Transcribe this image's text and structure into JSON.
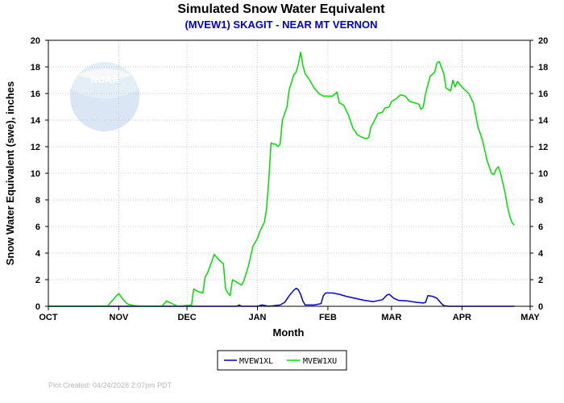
{
  "colors": {
    "xl": "#0000cc",
    "xu": "#00dd00",
    "subtitle": "#0000cc",
    "footer": "#b8b8b8"
  },
  "logo": {
    "text": "NOAA"
  },
  "footer": "Plot Created: 04/24/2026 2:07pm PDT",
  "chart_data": {
    "type": "line",
    "title": "Simulated Snow Water Equivalent",
    "subtitle": "(MVEW1) SKAGIT - NEAR MT VERNON",
    "xlabel": "Month",
    "ylabel": "Snow Water Equivalent (swe),  inches",
    "x_ticks": [
      "OCT",
      "NOV",
      "DEC",
      "JAN",
      "FEB",
      "MAR",
      "APR",
      "MAY"
    ],
    "y_ticks": [
      "0",
      "2",
      "4",
      "6",
      "8",
      "10",
      "12",
      "14",
      "16",
      "18",
      "20"
    ],
    "xlim": [
      "2025-10-01",
      "2026-05-01"
    ],
    "ylim": [
      0,
      20
    ],
    "grid": true,
    "legend_position": "bottom-center",
    "series": [
      {
        "name": "MVEW1XL",
        "color": "#0000cc",
        "points": [
          [
            "2025-10-01",
            0
          ],
          [
            "2025-12-23",
            0
          ],
          [
            "2025-12-24",
            0.1
          ],
          [
            "2025-12-25",
            0
          ],
          [
            "2026-01-01",
            0
          ],
          [
            "2026-01-03",
            0.1
          ],
          [
            "2026-01-06",
            0
          ],
          [
            "2026-01-11",
            0.1
          ],
          [
            "2026-01-13",
            0.3
          ],
          [
            "2026-01-15",
            0.8
          ],
          [
            "2026-01-17",
            1.2
          ],
          [
            "2026-01-18",
            1.35
          ],
          [
            "2026-01-19",
            1.25
          ],
          [
            "2026-01-20",
            0.9
          ],
          [
            "2026-01-21",
            0.4
          ],
          [
            "2026-01-22",
            0.1
          ],
          [
            "2026-01-26",
            0.1
          ],
          [
            "2026-01-29",
            0.2
          ],
          [
            "2026-01-30",
            0.8
          ],
          [
            "2026-01-31",
            1.0
          ],
          [
            "2026-02-03",
            1.0
          ],
          [
            "2026-02-06",
            0.9
          ],
          [
            "2026-02-09",
            0.75
          ],
          [
            "2026-02-13",
            0.6
          ],
          [
            "2026-02-17",
            0.45
          ],
          [
            "2026-02-21",
            0.35
          ],
          [
            "2026-02-25",
            0.5
          ],
          [
            "2026-02-27",
            0.85
          ],
          [
            "2026-02-28",
            0.9
          ],
          [
            "2026-03-02",
            0.6
          ],
          [
            "2026-03-04",
            0.45
          ],
          [
            "2026-03-08",
            0.4
          ],
          [
            "2026-03-12",
            0.3
          ],
          [
            "2026-03-15",
            0.25
          ],
          [
            "2026-03-16",
            0.3
          ],
          [
            "2026-03-17",
            0.8
          ],
          [
            "2026-03-19",
            0.75
          ],
          [
            "2026-03-21",
            0.6
          ],
          [
            "2026-03-23",
            0.2
          ],
          [
            "2026-03-24",
            0.05
          ],
          [
            "2026-03-26",
            0
          ],
          [
            "2026-04-24",
            0
          ]
        ]
      },
      {
        "name": "MVEW1XU",
        "color": "#00dd00",
        "points": [
          [
            "2025-10-01",
            0
          ],
          [
            "2025-10-27",
            0
          ],
          [
            "2025-10-29",
            0.4
          ],
          [
            "2025-10-31",
            0.8
          ],
          [
            "2025-11-01",
            0.95
          ],
          [
            "2025-11-02",
            0.7
          ],
          [
            "2025-11-04",
            0.3
          ],
          [
            "2025-11-05",
            0.15
          ],
          [
            "2025-11-08",
            0.05
          ],
          [
            "2025-11-12",
            0
          ],
          [
            "2025-11-20",
            0
          ],
          [
            "2025-11-22",
            0.4
          ],
          [
            "2025-11-25",
            0.15
          ],
          [
            "2025-11-27",
            0
          ],
          [
            "2025-12-03",
            0.1
          ],
          [
            "2025-12-04",
            1.3
          ],
          [
            "2025-12-06",
            1.1
          ],
          [
            "2025-12-08",
            1.0
          ],
          [
            "2025-12-09",
            2.2
          ],
          [
            "2025-12-10",
            2.5
          ],
          [
            "2025-12-12",
            3.4
          ],
          [
            "2025-12-13",
            3.9
          ],
          [
            "2025-12-15",
            3.5
          ],
          [
            "2025-12-17",
            3.2
          ],
          [
            "2025-12-18",
            1.3
          ],
          [
            "2025-12-19",
            1.0
          ],
          [
            "2025-12-20",
            0.8
          ],
          [
            "2025-12-21",
            2.0
          ],
          [
            "2025-12-23",
            1.8
          ],
          [
            "2025-12-25",
            1.6
          ],
          [
            "2025-12-26",
            1.9
          ],
          [
            "2025-12-28",
            3.0
          ],
          [
            "2025-12-30",
            4.5
          ],
          [
            "2026-01-01",
            5.1
          ],
          [
            "2026-01-02",
            5.6
          ],
          [
            "2026-01-04",
            6.3
          ],
          [
            "2026-01-05",
            7.3
          ],
          [
            "2026-01-06",
            9.5
          ],
          [
            "2026-01-07",
            12.3
          ],
          [
            "2026-01-08",
            12.2
          ],
          [
            "2026-01-09",
            12.2
          ],
          [
            "2026-01-10",
            12.0
          ],
          [
            "2026-01-11",
            12.2
          ],
          [
            "2026-01-12",
            14.0
          ],
          [
            "2026-01-14",
            15.0
          ],
          [
            "2026-01-15",
            16.3
          ],
          [
            "2026-01-17",
            17.4
          ],
          [
            "2026-01-18",
            17.6
          ],
          [
            "2026-01-19",
            18.2
          ],
          [
            "2026-01-20",
            19.1
          ],
          [
            "2026-01-21",
            18.1
          ],
          [
            "2026-01-22",
            17.5
          ],
          [
            "2026-01-24",
            17.0
          ],
          [
            "2026-01-26",
            16.4
          ],
          [
            "2026-01-28",
            16.0
          ],
          [
            "2026-01-30",
            15.8
          ],
          [
            "2026-02-03",
            15.8
          ],
          [
            "2026-02-05",
            16.1
          ],
          [
            "2026-02-06",
            15.3
          ],
          [
            "2026-02-08",
            15.1
          ],
          [
            "2026-02-10",
            14.4
          ],
          [
            "2026-02-12",
            13.4
          ],
          [
            "2026-02-14",
            12.9
          ],
          [
            "2026-02-16",
            12.7
          ],
          [
            "2026-02-18",
            12.6
          ],
          [
            "2026-02-19",
            12.7
          ],
          [
            "2026-02-20",
            13.5
          ],
          [
            "2026-02-21",
            13.8
          ],
          [
            "2026-02-23",
            14.5
          ],
          [
            "2026-02-25",
            14.6
          ],
          [
            "2026-02-26",
            14.9
          ],
          [
            "2026-02-28",
            15.0
          ],
          [
            "2026-03-01",
            15.4
          ],
          [
            "2026-03-03",
            15.6
          ],
          [
            "2026-03-05",
            15.9
          ],
          [
            "2026-03-07",
            15.8
          ],
          [
            "2026-03-09",
            15.4
          ],
          [
            "2026-03-11",
            15.3
          ],
          [
            "2026-03-13",
            15.2
          ],
          [
            "2026-03-14",
            14.8
          ],
          [
            "2026-03-15",
            15.0
          ],
          [
            "2026-03-16",
            16.0
          ],
          [
            "2026-03-18",
            17.3
          ],
          [
            "2026-03-20",
            17.6
          ],
          [
            "2026-03-21",
            18.3
          ],
          [
            "2026-03-22",
            18.4
          ],
          [
            "2026-03-24",
            17.5
          ],
          [
            "2026-03-25",
            16.4
          ],
          [
            "2026-03-27",
            16.2
          ],
          [
            "2026-03-28",
            17.0
          ],
          [
            "2026-03-29",
            16.5
          ],
          [
            "2026-03-30",
            16.9
          ],
          [
            "2026-04-01",
            16.5
          ],
          [
            "2026-04-02",
            16.3
          ],
          [
            "2026-04-04",
            16.0
          ],
          [
            "2026-04-06",
            15.3
          ],
          [
            "2026-04-08",
            13.5
          ],
          [
            "2026-04-10",
            12.5
          ],
          [
            "2026-04-12",
            11.0
          ],
          [
            "2026-04-14",
            10.0
          ],
          [
            "2026-04-15",
            9.9
          ],
          [
            "2026-04-16",
            10.3
          ],
          [
            "2026-04-17",
            10.5
          ],
          [
            "2026-04-18",
            10.0
          ],
          [
            "2026-04-20",
            8.5
          ],
          [
            "2026-04-21",
            7.5
          ],
          [
            "2026-04-22",
            6.8
          ],
          [
            "2026-04-23",
            6.3
          ],
          [
            "2026-04-24",
            6.1
          ]
        ]
      }
    ]
  }
}
